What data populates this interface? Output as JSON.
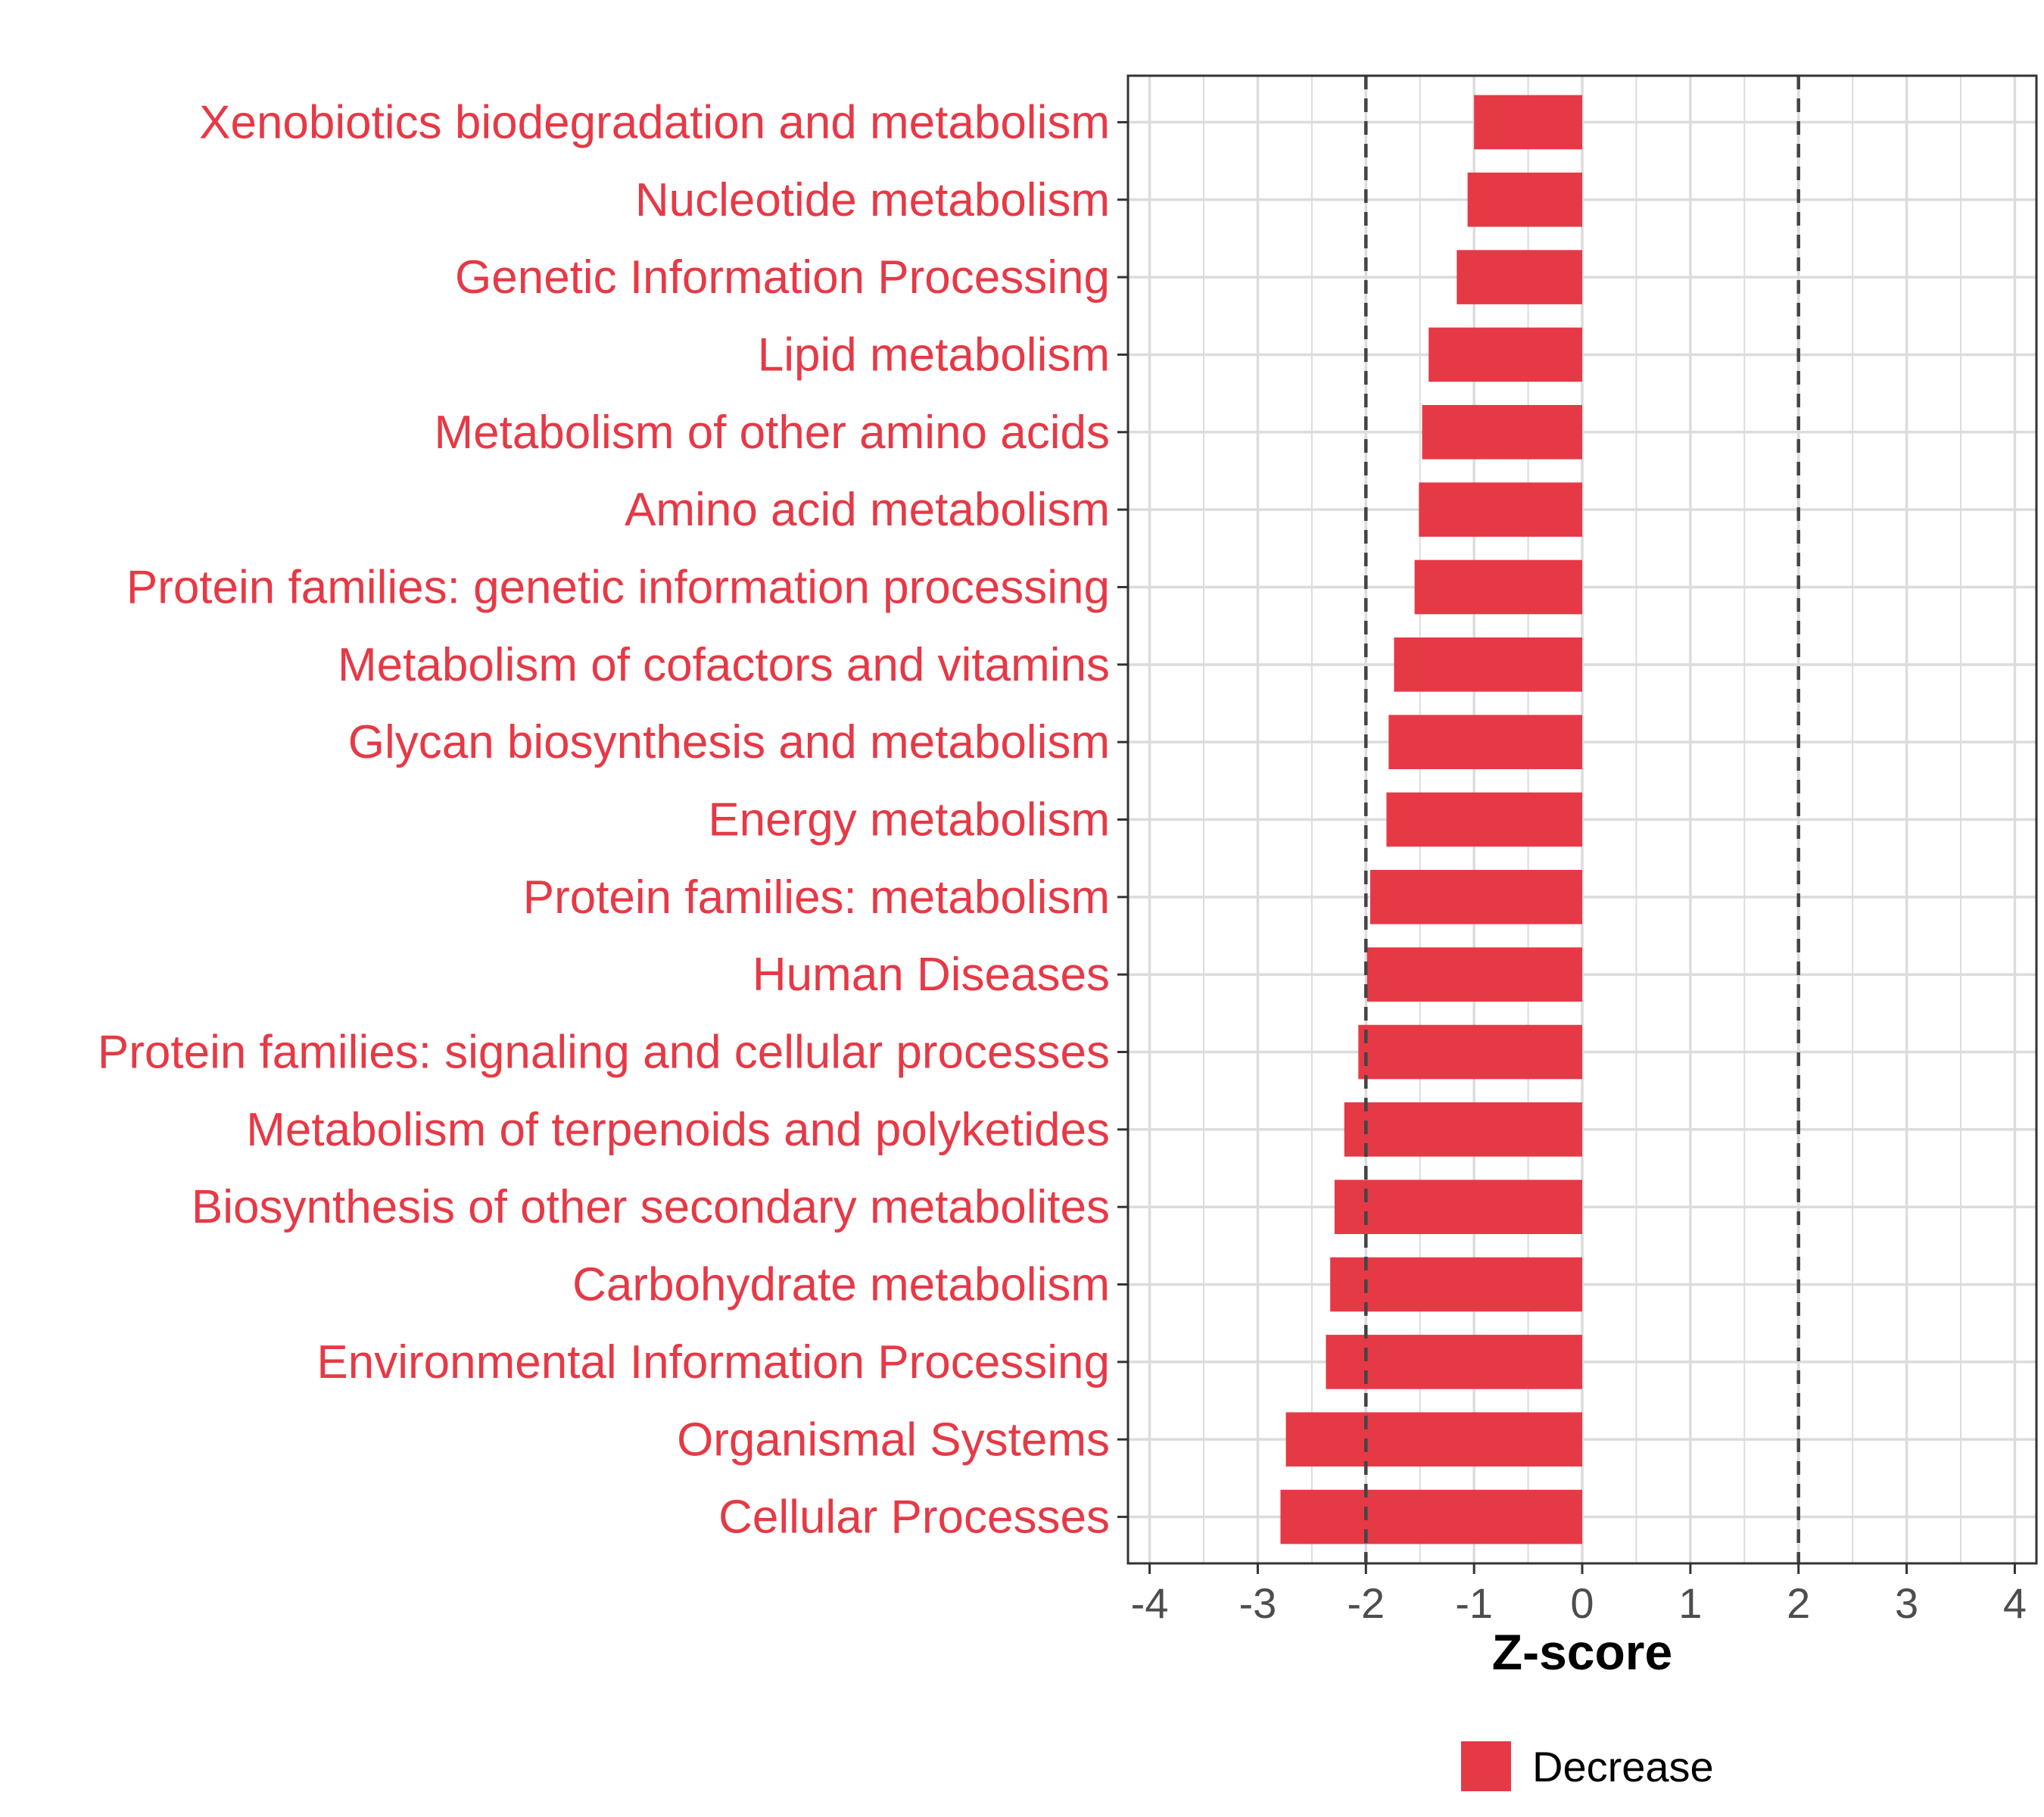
{
  "chart_data": {
    "type": "bar",
    "orientation": "horizontal",
    "categories": [
      "Xenobiotics biodegradation and metabolism",
      "Nucleotide metabolism",
      "Genetic Information Processing",
      "Lipid metabolism",
      "Metabolism of other amino acids",
      "Amino acid metabolism",
      "Protein families: genetic information processing",
      "Metabolism of cofactors and vitamins",
      "Glycan biosynthesis and metabolism",
      "Energy metabolism",
      "Protein families: metabolism",
      "Human Diseases",
      "Protein families: signaling and cellular processes",
      "Metabolism of terpenoids and polyketides",
      "Biosynthesis of other secondary metabolites",
      "Carbohydrate metabolism",
      "Environmental Information Processing",
      "Organismal Systems",
      "Cellular Processes"
    ],
    "series": [
      {
        "name": "Decrease",
        "color": "#e63946",
        "values": [
          -1.0,
          -1.06,
          -1.16,
          -1.42,
          -1.48,
          -1.51,
          -1.55,
          -1.74,
          -1.79,
          -1.81,
          -1.96,
          -1.99,
          -2.07,
          -2.2,
          -2.29,
          -2.33,
          -2.37,
          -2.74,
          -2.79
        ]
      }
    ],
    "xlabel": "Z-score",
    "ylabel": "",
    "xlim": [
      -4.2,
      4.2
    ],
    "x_ticks": [
      -4,
      -3,
      -2,
      -1,
      0,
      1,
      2,
      3,
      4
    ],
    "x_tick_labels": [
      "-4",
      "-3",
      "-2",
      "-1",
      "0",
      "1",
      "2",
      "3",
      "4"
    ],
    "reference_lines": [
      -2,
      2
    ],
    "grid": true,
    "legend": {
      "position": "bottom",
      "entries": [
        "Decrease"
      ]
    },
    "label_color": "#e63946"
  }
}
